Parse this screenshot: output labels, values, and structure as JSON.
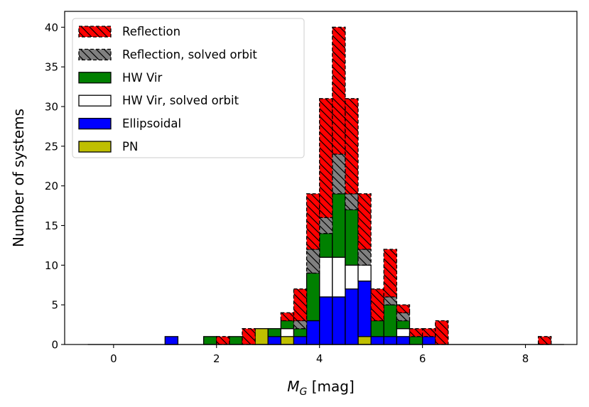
{
  "chart_data": {
    "type": "bar",
    "stacked": true,
    "xlabel": "M_G [mag]",
    "xlabel_main": "M",
    "xlabel_sub": "G",
    "xlabel_unit": " [mag]",
    "ylabel": "Number of systems",
    "xlim": [
      -0.95,
      9.0
    ],
    "ylim": [
      0,
      42
    ],
    "xticks": [
      0,
      2,
      4,
      6,
      8
    ],
    "yticks": [
      0,
      5,
      10,
      15,
      20,
      25,
      30,
      35,
      40
    ],
    "bin_width": 0.25,
    "bin_starts": [
      -0.5,
      -0.25,
      0.0,
      0.25,
      0.5,
      0.75,
      1.0,
      1.25,
      1.5,
      1.75,
      2.0,
      2.25,
      2.5,
      2.75,
      3.0,
      3.25,
      3.5,
      3.75,
      4.0,
      4.25,
      4.5,
      4.75,
      5.0,
      5.25,
      5.5,
      5.75,
      6.0,
      6.25,
      6.5,
      6.75,
      7.0,
      7.25,
      7.5,
      7.75,
      8.0,
      8.25,
      8.5
    ],
    "series": [
      {
        "name": "PN",
        "color": "#bfbf00",
        "values": [
          0,
          0,
          0,
          0,
          0,
          0,
          0,
          0,
          0,
          0,
          0,
          0,
          0,
          2,
          0,
          1,
          0,
          0,
          0,
          0,
          0,
          1,
          0,
          0,
          0,
          0,
          0,
          0,
          0,
          0,
          0,
          0,
          0,
          0,
          0,
          0,
          0
        ]
      },
      {
        "name": "Ellipsoidal",
        "color": "#0000ff",
        "values": [
          0,
          0,
          0,
          0,
          0,
          0,
          1,
          0,
          0,
          0,
          0,
          0,
          0,
          0,
          1,
          0,
          1,
          3,
          6,
          6,
          7,
          7,
          1,
          1,
          1,
          0,
          1,
          0,
          0,
          0,
          0,
          0,
          0,
          0,
          0,
          0,
          0
        ]
      },
      {
        "name": "HW Vir, solved orbit",
        "color": "#ffffff",
        "values": [
          0,
          0,
          0,
          0,
          0,
          0,
          0,
          0,
          0,
          0,
          0,
          0,
          0,
          0,
          0,
          1,
          0,
          0,
          5,
          5,
          3,
          2,
          0,
          0,
          1,
          0,
          0,
          0,
          0,
          0,
          0,
          0,
          0,
          0,
          0,
          0,
          0
        ]
      },
      {
        "name": "HW Vir",
        "color": "#008000",
        "values": [
          0,
          0,
          0,
          0,
          0,
          0,
          0,
          0,
          0,
          1,
          0,
          1,
          0,
          0,
          1,
          1,
          1,
          6,
          3,
          8,
          7,
          0,
          2,
          4,
          1,
          1,
          0,
          0,
          0,
          0,
          0,
          0,
          0,
          0,
          0,
          0,
          0
        ]
      },
      {
        "name": "Reflection, solved orbit",
        "color": "#808080",
        "values": [
          0,
          0,
          0,
          0,
          0,
          0,
          0,
          0,
          0,
          0,
          0,
          0,
          0,
          0,
          0,
          0,
          1,
          3,
          2,
          5,
          2,
          2,
          0,
          1,
          1,
          0,
          0,
          0,
          0,
          0,
          0,
          0,
          0,
          0,
          0,
          0,
          0
        ]
      },
      {
        "name": "Reflection",
        "color": "#ff0000",
        "values": [
          0,
          0,
          0,
          0,
          0,
          0,
          0,
          0,
          0,
          0,
          1,
          0,
          2,
          0,
          0,
          1,
          4,
          7,
          15,
          16,
          12,
          7,
          4,
          6,
          1,
          1,
          1,
          3,
          0,
          0,
          0,
          0,
          0,
          0,
          0,
          1,
          0
        ]
      }
    ],
    "legend_order": [
      "Reflection",
      "Reflection, solved orbit",
      "HW Vir",
      "HW Vir, solved orbit",
      "Ellipsoidal",
      "PN"
    ],
    "legend_position": "upper-left"
  }
}
